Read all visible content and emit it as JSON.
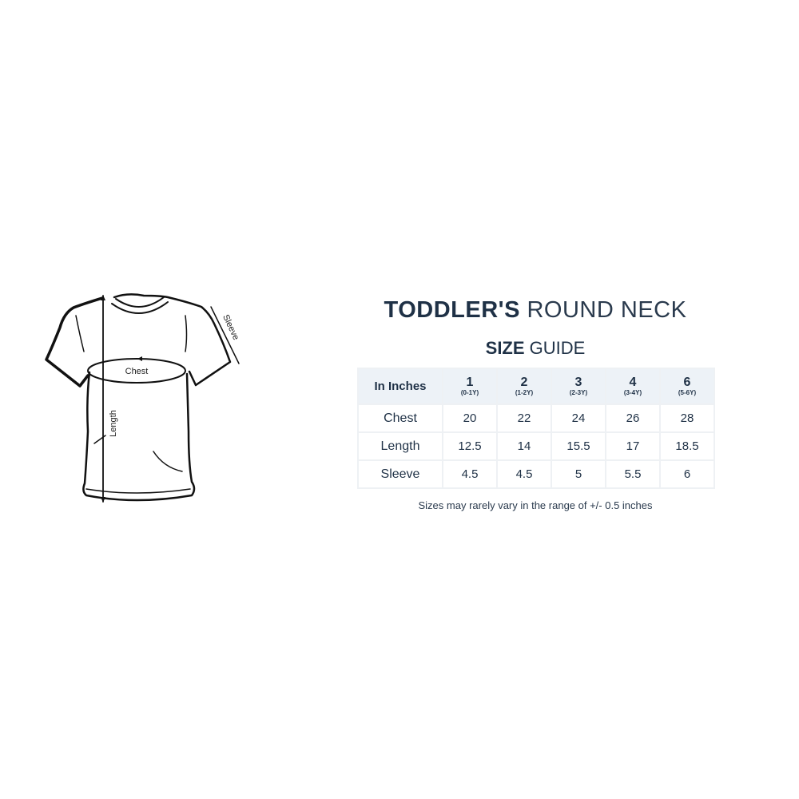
{
  "title": {
    "bold": "TODDLER'S",
    "light": "ROUND NECK"
  },
  "subtitle": {
    "bold": "SIZE",
    "light": "GUIDE"
  },
  "diagram": {
    "chest_label": "Chest",
    "length_label": "Length",
    "sleeve_label": "Sleeve"
  },
  "table": {
    "corner": "In Inches",
    "sizes": [
      {
        "size": "1",
        "age": "(0-1Y)"
      },
      {
        "size": "2",
        "age": "(1-2Y)"
      },
      {
        "size": "3",
        "age": "(2-3Y)"
      },
      {
        "size": "4",
        "age": "(3-4Y)"
      },
      {
        "size": "6",
        "age": "(5-6Y)"
      }
    ],
    "rows": [
      {
        "label": "Chest",
        "values": [
          "20",
          "22",
          "24",
          "26",
          "28"
        ]
      },
      {
        "label": "Length",
        "values": [
          "12.5",
          "14",
          "15.5",
          "17",
          "18.5"
        ]
      },
      {
        "label": "Sleeve",
        "values": [
          "4.5",
          "4.5",
          "5",
          "5.5",
          "6"
        ]
      }
    ]
  },
  "note": "Sizes may rarely vary in the range of +/- 0.5 inches",
  "colors": {
    "text": "#1f3146",
    "header_bg": "#edf2f7",
    "border": "#eef1f4"
  }
}
